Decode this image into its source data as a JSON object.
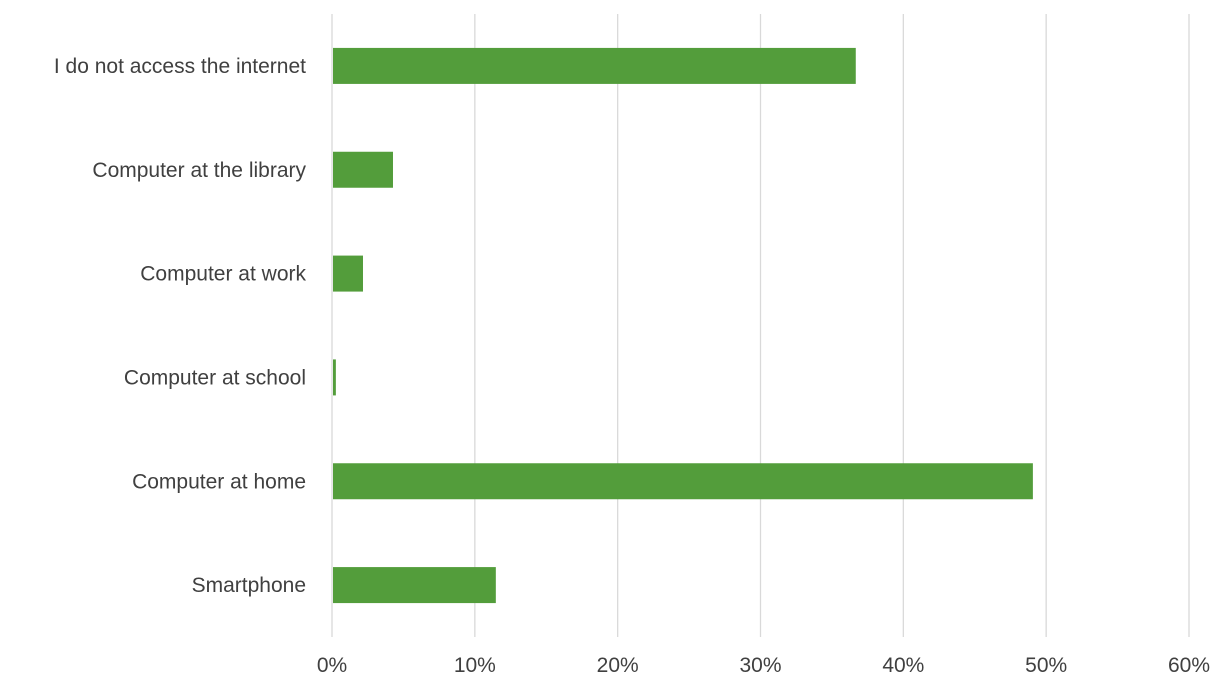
{
  "chart_data": {
    "type": "bar",
    "orientation": "horizontal",
    "categories": [
      "I do not access the internet",
      "Computer at the library",
      "Computer at work",
      "Computer at school",
      "Computer at home",
      "Smartphone"
    ],
    "values": [
      36.6,
      4.2,
      2.1,
      0.2,
      49.0,
      11.4
    ],
    "value_unit": "%",
    "xlim": [
      0,
      60
    ],
    "x_ticks": [
      0,
      10,
      20,
      30,
      40,
      50,
      60
    ],
    "x_tick_labels": [
      "0%",
      "10%",
      "20%",
      "30%",
      "40%",
      "50%",
      "60%"
    ],
    "title": "",
    "xlabel": "",
    "ylabel": "",
    "grid": "vertical",
    "legend": "none",
    "bar_color": "#539d3b",
    "grid_color": "#d9d9d9",
    "text_color": "#404040"
  }
}
